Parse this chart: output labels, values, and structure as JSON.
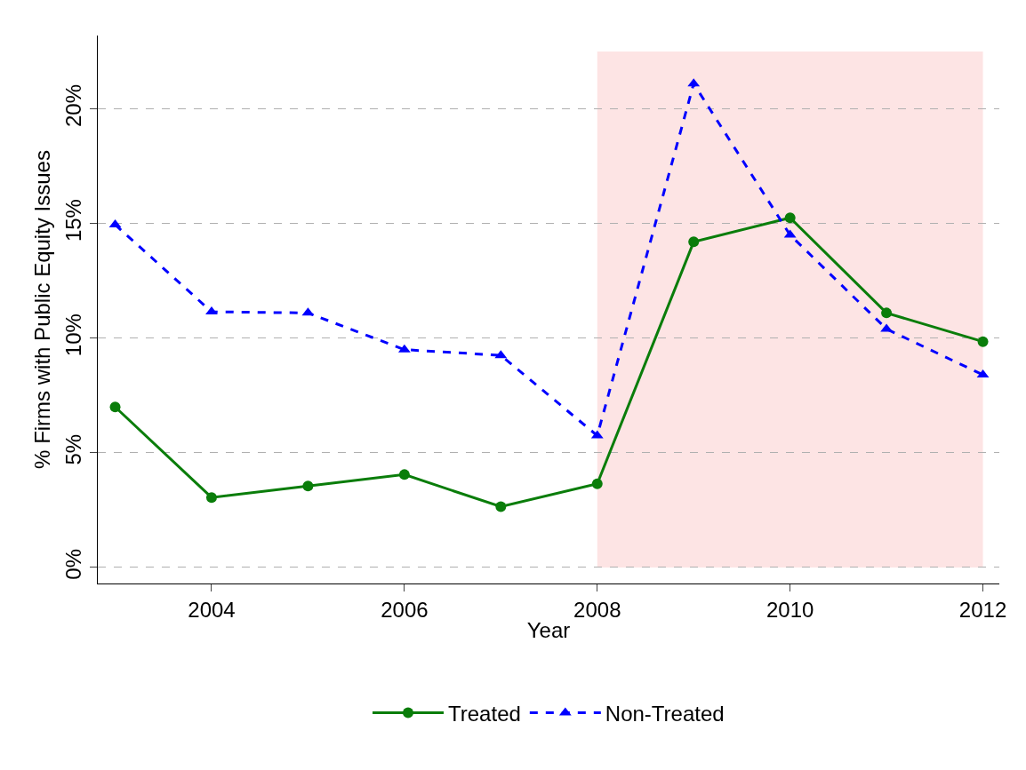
{
  "chart_data": {
    "type": "line",
    "xlabel": "Year",
    "ylabel": "% Firms with Public Equity Issues",
    "x": [
      2003,
      2004,
      2005,
      2006,
      2007,
      2008,
      2009,
      2010,
      2011,
      2012
    ],
    "series": [
      {
        "name": "Treated",
        "color": "#0a7d0a",
        "marker": "circle",
        "line_style": "solid",
        "values": [
          7.0,
          3.05,
          3.55,
          4.05,
          2.65,
          3.65,
          14.2,
          15.25,
          11.1,
          9.85
        ]
      },
      {
        "name": "Non-Treated",
        "color": "#0000ff",
        "marker": "triangle",
        "line_style": "dashed",
        "values": [
          14.95,
          11.15,
          11.1,
          9.5,
          9.25,
          5.75,
          21.1,
          14.5,
          10.4,
          8.4
        ]
      }
    ],
    "xlim": [
      2002.82,
      2012.17
    ],
    "xticks": [
      2004,
      2006,
      2008,
      2010,
      2012
    ],
    "ylim": [
      -0.7,
      23.2
    ],
    "yticks": [
      {
        "value": 0,
        "label": "0%"
      },
      {
        "value": 5,
        "label": "5%"
      },
      {
        "value": 10,
        "label": "10%"
      },
      {
        "value": 15,
        "label": "15%"
      },
      {
        "value": 20,
        "label": "20%"
      }
    ],
    "bands": [
      {
        "axis": "x",
        "from": 2008,
        "to": 2012,
        "color": "#fde4e4"
      }
    ],
    "grid": "y",
    "legend": "bottom"
  }
}
